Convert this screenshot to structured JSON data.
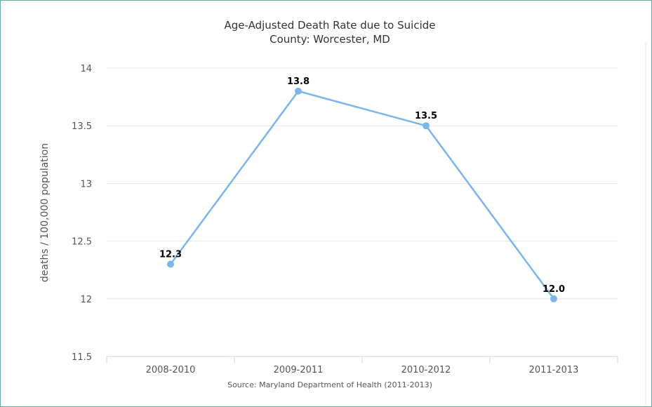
{
  "chart_data": {
    "type": "line",
    "title": "Age-Adjusted Death Rate due to Suicide",
    "subtitle": "County: Worcester, MD",
    "ylabel": "deaths / 100,000 population",
    "categories": [
      "2008-2010",
      "2009-2011",
      "2010-2012",
      "2011-2013"
    ],
    "series": [
      {
        "values": [
          12.3,
          13.8,
          13.5,
          12.0
        ],
        "labels": [
          "12.3",
          "13.8",
          "13.5",
          "12.0"
        ]
      }
    ],
    "ylim": [
      11.5,
      14
    ],
    "yticks": [
      11.5,
      12,
      12.5,
      13,
      13.5,
      14
    ],
    "ytick_labels": [
      "11.5",
      "12",
      "12.5",
      "13",
      "13.5",
      "14"
    ],
    "grid": true,
    "source": "Source: Maryland Department of Health (2011-2013)",
    "colors": {
      "line": "#7cb5ec",
      "grid": "#e6e6e6",
      "axis": "#ccd6eb",
      "frame": "#6aa9a3"
    }
  }
}
